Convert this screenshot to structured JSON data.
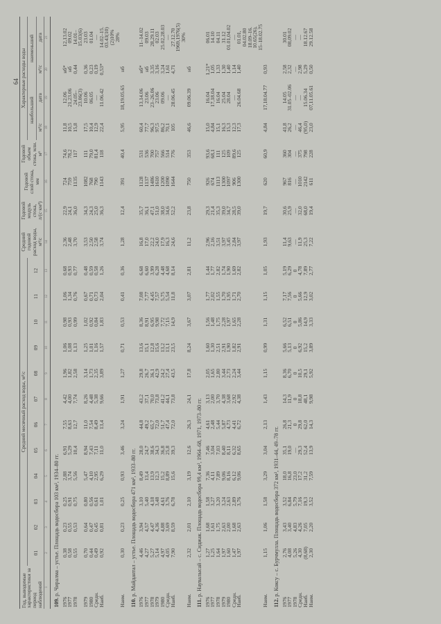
{
  "page_number": "64",
  "header": {
    "col1": "Год, выводимые характеристики за период наблюдений",
    "monthly_group": "Средний месячный расход воды, м³/с",
    "months": [
      "01",
      "02",
      "03",
      "04",
      "05",
      "06",
      "07",
      "08",
      "09",
      "10",
      "11",
      "12"
    ],
    "mean_annual": "Средний годовой расход воды, м³/с",
    "modulus": "Годовой модуль стока, л/(с·км²)",
    "layer": "Годовой слой стока, мм",
    "volume": "Годовой объем стока, млн. м³",
    "characteristic_group": "Характерные расходы воды",
    "max_group": "наибольший",
    "min_group": "наименьший",
    "unit_q": "м³/с",
    "unit_date": "дата",
    "column_numbers": [
      "1",
      "2",
      "3",
      "4",
      "5",
      "6",
      "7",
      "8",
      "9",
      "10",
      "11",
      "12",
      "13",
      "14",
      "15",
      "16",
      "17",
      "18",
      "19",
      "20",
      "21"
    ]
  },
  "sections": [
    {
      "number": "109.",
      "title": "р. Чиралма – устье. Площадь водосбора 103 км², 1934–80 гг.",
      "rows": [
        {
          "label": "1976",
          "months": [
            "0,38",
            "0,23",
            "0,25",
            "2,88",
            "6,91",
            "7,55",
            "4,42",
            "1,96",
            "1,06",
            "0,98",
            "1,06",
            "0,68"
          ],
          "mean": "2,36",
          "modulus": "22,9",
          "layer": "724",
          "volume": "74,6",
          "max_q": "11,8",
          "max_date": "12.06",
          "min_q": "нб*",
          "min_date": "12,13.02"
        },
        {
          "label": "1977",
          "months": [
            "0,58",
            "0,55",
            "0,91",
            "3,74",
            "5,29",
            "8,63",
            "4,00",
            "1,82",
            "1,08",
            "0,93",
            "1,34",
            "0,93"
          ],
          "mean": "2,48",
          "modulus": "24,1",
          "layer": "759",
          "volume": "78,2",
          "max_q": "10,5",
          "max_date": "21,23.06",
          "min_q": "нб",
          "min_date": "09.02"
        },
        {
          "label": "1978",
          "months": [
            "0,55",
            "0,53",
            "0,75",
            "5,56",
            "10,4",
            "12,7",
            "7,74",
            "2,58",
            "1,13",
            "0,99",
            "0,76",
            "0,77"
          ],
          "mean": "3,70",
          "modulus": "36,0",
          "layer": "1135",
          "volume": "117",
          "max_q": "15,8",
          "max_date": "24.05–\n23.06(3)",
          "min_q": "0,44",
          "min_date": "14.01–\n15.03(6)"
        },
        {
          "label": "1979",
          "months": [
            "0,70",
            "0,64",
            "0,80",
            "5,47",
            "8,94",
            "11,0",
            "8,26",
            "3,14",
            "1,25",
            "1,02",
            "0,67",
            "0,48"
          ],
          "mean": "3,53",
          "modulus": "34,3",
          "layer": "1082",
          "volume": "111",
          "max_q": "17,5",
          "max_date": "10.06",
          "min_q": "0,36",
          "min_date": "23.03"
        },
        {
          "label": "1980",
          "months": [
            "0,44",
            "0,47",
            "0,56",
            "4,10",
            "7,43",
            "7,54",
            "4,48",
            "1,73",
            "1,01",
            "0,92",
            "0,71",
            "0,59"
          ],
          "mean": "2,50",
          "modulus": "24,3",
          "layer": "768",
          "volume": "79,0",
          "max_q": "10,4",
          "max_date": "06.05",
          "min_q": "0,23",
          "min_date": "01.04"
        },
        {
          "label": "Средн.",
          "months": [
            "0,49",
            "0,45",
            "0,61",
            "2,95",
            "7,11",
            "8,49",
            "5,38",
            "2,35",
            "1,16",
            "0,84",
            "0,73",
            "0,58"
          ],
          "mean": "2,58",
          "modulus": "25,0",
          "layer": "790",
          "volume": "81,4",
          "max_q": "12,9",
          "max_date": "—",
          "min_q": "0,19",
          "min_date": "—"
        },
        {
          "label": "Наиб.",
          "months": [
            "0,92",
            "0,81",
            "1,01",
            "6,29",
            "11,0",
            "13,4",
            "9,66",
            "3,89",
            "1,57",
            "1,83",
            "2,04",
            "1,26"
          ],
          "mean": "3,74",
          "modulus": "36,3",
          "layer": "1143",
          "volume": "118",
          "max_q": "22,4",
          "max_date": "11.06.42",
          "min_q": "0,53*",
          "min_date": "14.02–15.\n03.43(10)\n(2)10%\n28%"
        },
        {
          "label": "Наим.",
          "months": [
            "0,30",
            "0,23",
            "0,25",
            "0,93",
            "3,46",
            "3,24",
            "1,91",
            "1,27",
            "0,71",
            "0,53",
            "0,41",
            "0,36"
          ],
          "mean": "1,28",
          "modulus": "12,4",
          "layer": "391",
          "volume": "40,4",
          "max_q": "5,95",
          "max_date": "18,19.05.65",
          "min_q": "нб",
          "min_date": ""
        }
      ]
    },
    {
      "number": "110.",
      "title": "р. Майдантал – устье. Площадь водосбора 471 км², 1933–80 гг.",
      "rows": [
        {
          "label": "1976",
          "months": [
            "4,46",
            "3,94",
            "3,10",
            "8,49",
            "28,0",
            "44,8",
            "43,2",
            "29,8",
            "13,6",
            "8,36",
            "7,08",
            "6,68"
          ],
          "mean": "16,8",
          "modulus": "35,7",
          "layer": "1128",
          "volume": "531",
          "max_q": "60,4",
          "max_date": "13,14.06",
          "min_q": "нб*",
          "min_date": "11–14.02"
        },
        {
          "label": "1977",
          "months": [
            "4,27",
            "4,57",
            "5,40",
            "13,4",
            "24,7",
            "49,2",
            "37,1",
            "26,7",
            "15,1",
            "8,91",
            "7,77",
            "6,60"
          ],
          "mean": "17,0",
          "modulus": "36,1",
          "layer": "1137",
          "volume": "536",
          "max_q": "77,7",
          "max_date": "23.06",
          "min_q": "нб",
          "min_date": "09.03"
        },
        {
          "label": "1978",
          "months": [
            "5,27",
            "4,47",
            "4,18",
            "13,9",
            "38,6",
            "65,7",
            "70,0",
            "36,1",
            "12,8",
            "6,95",
            "4,45",
            "3,99"
          ],
          "mean": "22,2",
          "modulus": "47,1",
          "layer": "1486",
          "volume": "700",
          "max_q": "96,3",
          "max_date": "23–26.06",
          "min_q": "3,35",
          "min_date": "28,29.11"
        },
        {
          "label": "1979",
          "months": [
            "5,14",
            "4,36",
            "3,48",
            "12,3",
            "34,3",
            "72,0",
            "73,8",
            "42,9",
            "15,6",
            "9,98",
            "7,57",
            "6,28"
          ],
          "mean": "24,0",
          "modulus": "51,0",
          "layer": "1610",
          "volume": "757",
          "max_q": "97,5",
          "max_date": "23.06",
          "min_q": "3,16",
          "min_date": "02.03"
        },
        {
          "label": "1980",
          "months": [
            "4,97",
            "4,88",
            "4,61",
            "15,2",
            "36,8",
            "51,7",
            "41,2",
            "24,2",
            "13,2",
            "7,72",
            "5,75",
            "4,48"
          ],
          "mean": "17,9",
          "modulus": "38,0",
          "layer": "1200",
          "volume": "566",
          "max_q": "86,2",
          "max_date": "09.06",
          "min_q": "3,24",
          "min_date": "25.02,28.03"
        },
        {
          "label": "Средн.",
          "months": [
            "4,05",
            "3,69",
            "3,76",
            "8,89",
            "25,8",
            "47,4",
            "44,1",
            "27,4",
            "13,1",
            "7,15",
            "5,54",
            "4,68"
          ],
          "mean": "16,3",
          "modulus": "34,6",
          "layer": "1090",
          "volume": "514",
          "max_q": "70,1",
          "max_date": "—",
          "min_q": "1,61",
          "min_date": "—"
        },
        {
          "label": "Наиб.",
          "months": [
            "7,90",
            "8,59",
            "6,78",
            "15,6",
            "39,3",
            "72,0",
            "73,8",
            "43,5",
            "23,5",
            "14,9",
            "11,8",
            "8,14"
          ],
          "mean": "24,6",
          "modulus": "52,2",
          "layer": "1644",
          "volume": "776",
          "max_q": "105",
          "max_date": "28.06.45",
          "min_q": "4,71",
          "min_date": "27.12.70\n1969,1976(5)\n30%"
        },
        {
          "label": "Наим.",
          "months": [
            "2,32",
            "2,01",
            "2,10",
            "3,19",
            "12,6",
            "26,3",
            "24,1",
            "17,8",
            "8,24",
            "3,67",
            "3,07",
            "2,81"
          ],
          "mean": "11,2",
          "modulus": "23,8",
          "layer": "750",
          "volume": "353",
          "max_q": "46,6",
          "max_date": "09.06.39",
          "min_q": "нб",
          "min_date": ""
        }
      ]
    },
    {
      "number": "111.",
      "title": "р. Наувалысай – с. Сиджак. Площадь водосбора 99,4 км², 1964–68, 1971, 1973–80 гг.",
      "rows": [
        {
          "label": "1976",
          "months": [
            "1,27",
            "1,68",
            "1,58",
            "7,36",
            "7,46",
            "4,61",
            "3,13",
            "2,05",
            "1,60",
            "1,56",
            "1,77",
            "1,44"
          ],
          "mean": "2,96",
          "modulus": "29,3",
          "layer": "926",
          "volume": "93,6",
          "max_q": "15,0",
          "max_date": "16.04",
          "min_q": "1,21*",
          "min_date": "06.01"
        },
        {
          "label": "1977",
          "months": [
            "1,25",
            "1,61",
            "3,27",
            "4,11",
            "3,04",
            "2,48",
            "2,00",
            "1,65",
            "1,30",
            "1,48",
            "2,02",
            "1,77"
          ],
          "mean": "2,16",
          "modulus": "21,4",
          "layer": "674",
          "volume": "68,1",
          "max_q": "4,84",
          "max_date": "17,18.04",
          "min_q": "1,05",
          "min_date": "14.10"
        },
        {
          "label": "1978",
          "months": [
            "1,64",
            "1,75",
            "3,20",
            "7,89",
            "7,03",
            "5,44",
            "3,70",
            "2,80",
            "2,51",
            "1,75",
            "1,55",
            "2,82"
          ],
          "mean": "3,51",
          "modulus": "35,3",
          "layer": "1113",
          "volume": "111",
          "max_q": "15,1",
          "max_date": "16.04",
          "min_q": "1,33",
          "min_date": "04.11"
        },
        {
          "label": "1979",
          "months": [
            "1,97",
            "2,63",
            "3,24",
            "9,06",
            "8,40",
            "5,87",
            "4,38",
            "3,44",
            "2,91",
            "2,28",
            "1,70",
            "1,74"
          ],
          "mean": "3,97",
          "modulus": "39,0",
          "layer": "1300",
          "volume": "125",
          "max_q": "16,3",
          "max_date": "25.04",
          "min_q": "1,30",
          "min_date": "31.12"
        },
        {
          "label": "1980",
          "months": [
            "1,60",
            "2,00",
            "2,63",
            "8,16",
            "8,11",
            "4,73",
            "3,68",
            "2,73",
            "1,90",
            "1,97",
            "1,95",
            "1,90"
          ],
          "mean": "3,45",
          "modulus": "34,7",
          "layer": "1097",
          "volume": "109",
          "max_q": "15,3",
          "max_date": "28.04",
          "min_q": "1,40",
          "min_date": "01.01,04.02"
        },
        {
          "label": "Средн.",
          "months": [
            "1,47",
            "1,68",
            "2,89",
            "6,12",
            "6,32",
            "4,41",
            "2,92",
            "2,24",
            "1,82",
            "1,65",
            "1,71",
            "1,69"
          ],
          "mean": "2,84",
          "modulus": "28,5",
          "layer": "906",
          "volume": "89,6",
          "max_q": "12,3",
          "max_date": "—",
          "min_q": "1,14",
          "min_date": "—"
        },
        {
          "label": "Наиб.",
          "months": [
            "1,97",
            "2,63",
            "3,76",
            "9,06",
            "8,65",
            "6,72",
            "4,38",
            "3,44",
            "2,91",
            "2,28",
            "2,70",
            "2,82"
          ],
          "mean": "3,97",
          "modulus": "39,0",
          "layer": "1300",
          "volume": "125",
          "max_q": "17,3",
          "max_date": "26.04.68",
          "min_q": "1,40",
          "min_date": "01.01,\n04.02.80\n18.09–16.\n10.65(26),\n15–18.02.75"
        },
        {
          "label": "Наим.",
          "months": [
            "1,15",
            "1,06",
            "1,58",
            "3,29",
            "3,04",
            "2,13",
            "1,43",
            "1,15",
            "0,99",
            "1,31",
            "1,15",
            "1,05"
          ],
          "mean": "1,93",
          "modulus": "19,7",
          "layer": "620",
          "volume": "60,9",
          "max_q": "4,84",
          "max_date": "17,18.04.77",
          "min_q": "0,93",
          "min_date": ""
        }
      ]
    },
    {
      "number": "112.",
      "title": "р. Коксу – с. Бурчмулла. Площадь водосбора 372 км², 1931–44, 49–78 гг.",
      "rows": [
        {
          "label": "1976",
          "months": [
            "2,76",
            "3,43",
            "3,52",
            "18,0",
            "35,1",
            "26,8",
            "14,3",
            "8,36",
            "5,66",
            "6,52",
            "7,17",
            "5,19"
          ],
          "mean": "11,4",
          "modulus": "30,6",
          "layer": "967",
          "volume": "360",
          "max_q": "41,8",
          "max_date": "14.05",
          "min_q": "2,58",
          "min_date": "30.01"
        },
        {
          "label": "1977",
          "months": [
            "4,08",
            "3,40",
            "6,84",
            "16,8",
            "19,0",
            "21,3",
            "11,9",
            "6,70",
            "5,13",
            "6,51",
            "7,56",
            "6,29"
          ],
          "mean": "9,63",
          "modulus": "25,9",
          "layer": "816",
          "volume": "304",
          "max_q": "26,2",
          "max_date": "31.05–02.06",
          "min_q": "2,32",
          "min_date": "08,09.02"
        },
        {
          "label": "1978",
          "months": [
            "5,26",
            "4,83",
            "5,79",
            "23,0",
            "—",
            "0",
            "0",
            "0",
            "0",
            "0",
            "0",
            "0"
          ],
          "mean": "—",
          "modulus": "—",
          "layer": "—",
          "volume": "—",
          "max_q": "—",
          "max_date": "—",
          "min_q": "—",
          "min_date": "—"
        },
        {
          "label": "Средн.",
          "months": [
            "4,30",
            "4,26",
            "7,16",
            "17,2",
            "29,3",
            "29,8",
            "18,8",
            "10,5",
            "6,92",
            "5,86",
            "5,66",
            "4,78"
          ],
          "mean": "11,9",
          "modulus": "32,0",
          "layer": "1010",
          "volume": "375",
          "max_q": "46,4",
          "max_date": "—",
          "min_q": "2,98",
          "min_date": "—"
        },
        {
          "label": "Наиб.",
          "months": [
            "(8,68)",
            "7,05",
            "19,3",
            "31,2",
            "52,4",
            "62,0",
            "48,1",
            "29,1",
            "15,2",
            "14,9",
            "12,9",
            "7,89"
          ],
          "mean": "25,3",
          "modulus": "68,0",
          "layer": "2142",
          "volume": "798",
          "max_q": "(95,0)",
          "max_date": "15.06.34",
          "min_q": "5,29",
          "min_date": "18.12.67"
        },
        {
          "label": "Наим.",
          "months": [
            "2,30",
            "2,20",
            "3,52",
            "7,59",
            "13,9",
            "14,3",
            "9,98",
            "5,92",
            "3,89",
            "3,33",
            "3,02",
            "2,77"
          ],
          "mean": "7,22",
          "modulus": "19,4",
          "layer": "611",
          "volume": "228",
          "max_q": "23,0",
          "max_date": "07,11.05.61",
          "min_q": "0,50",
          "min_date": "29.12.58"
        }
      ]
    }
  ]
}
